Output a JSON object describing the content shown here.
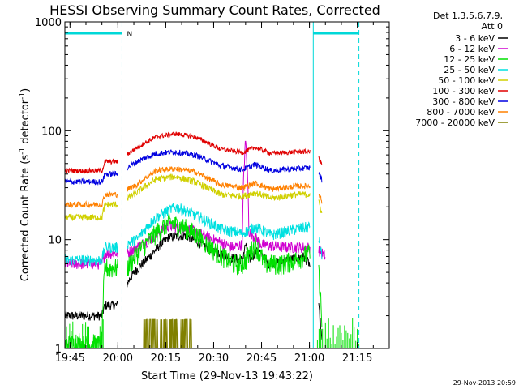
{
  "chart_data": {
    "type": "line",
    "title": "HESSI Observing Summary Count Rates, Corrected",
    "xlabel": "Start Time (29-Nov-13 19:43:22)",
    "ylabel": "Corrected Count Rate (s⁻¹ detector⁻¹)",
    "ylabel_main": "Corrected Count Rate (s",
    "ylabel_sup1": "-1",
    "ylabel_mid": " detector",
    "ylabel_sup2": "-1",
    "ylabel_end": ")",
    "y_scale": "log",
    "ylim": [
      1,
      1000
    ],
    "x_ticks": [
      "19:45",
      "20:00",
      "20:15",
      "20:30",
      "20:45",
      "21:00",
      "21:15"
    ],
    "x_tick_minutes": [
      1185,
      1200,
      1215,
      1230,
      1245,
      1260,
      1275
    ],
    "xlim_minutes": [
      1183.4,
      1285
    ],
    "y_ticks": [
      "1",
      "10",
      "100",
      "1000"
    ],
    "y_tick_values": [
      1,
      10,
      100,
      1000
    ],
    "legend_header": [
      "Det 1,3,5,6,7,9,",
      "Att 0"
    ],
    "legend_placement": "right",
    "annotation_flag": "N",
    "timestamp": "29-Nov-2013 20:59",
    "markers_minutes": [
      1201.3,
      1261.2,
      1275.5
    ],
    "flag_intervals_minutes": [
      [
        1183.4,
        1201.3
      ],
      [
        1261.2,
        1275.5
      ]
    ],
    "sunlight_gaps_minutes": [
      [
        1200.0,
        1202.8
      ],
      [
        1260.2,
        1262.8
      ]
    ],
    "series": [
      {
        "name": "3 - 6 keV",
        "color": "#000000",
        "values": [
          {
            "t": 1183.4,
            "v": 2
          },
          {
            "t": 1195,
            "v": 2
          },
          {
            "t": 1196,
            "v": 2.5
          },
          {
            "t": 1200,
            "v": 2.5
          },
          {
            "t": 1204,
            "v": 4.5
          },
          {
            "t": 1210,
            "v": 7
          },
          {
            "t": 1216,
            "v": 10.5
          },
          {
            "t": 1221,
            "v": 11
          },
          {
            "t": 1228,
            "v": 8.5
          },
          {
            "t": 1234,
            "v": 7
          },
          {
            "t": 1239,
            "v": 6.5
          },
          {
            "t": 1240,
            "v": 9
          },
          {
            "t": 1241,
            "v": 6.5
          },
          {
            "t": 1244,
            "v": 8
          },
          {
            "t": 1247,
            "v": 6
          },
          {
            "t": 1253,
            "v": 6.5
          },
          {
            "t": 1258,
            "v": 7
          },
          {
            "t": 1260,
            "v": 6
          },
          {
            "t": 1261,
            "v": 3.5
          },
          {
            "t": 1262,
            "v": 3.5
          },
          {
            "t": 1264,
            "v": 1
          }
        ]
      },
      {
        "name": "6 - 12 keV",
        "color": "#d000d0",
        "values": [
          {
            "t": 1183.4,
            "v": 6
          },
          {
            "t": 1195,
            "v": 6
          },
          {
            "t": 1196,
            "v": 7.5
          },
          {
            "t": 1200,
            "v": 7.5
          },
          {
            "t": 1203,
            "v": 7.5
          },
          {
            "t": 1210,
            "v": 10
          },
          {
            "t": 1216,
            "v": 13.5
          },
          {
            "t": 1222,
            "v": 12.5
          },
          {
            "t": 1230,
            "v": 10
          },
          {
            "t": 1236,
            "v": 8.5
          },
          {
            "t": 1239,
            "v": 9
          },
          {
            "t": 1240,
            "v": 80
          },
          {
            "t": 1241,
            "v": 12
          },
          {
            "t": 1243,
            "v": 10.5
          },
          {
            "t": 1245,
            "v": 9
          },
          {
            "t": 1252,
            "v": 8.5
          },
          {
            "t": 1258,
            "v": 8.5
          },
          {
            "t": 1262,
            "v": 8.5
          },
          {
            "t": 1265,
            "v": 7
          }
        ]
      },
      {
        "name": "12 - 25 keV",
        "color": "#00e000",
        "values": [
          {
            "t": 1183.4,
            "v": 1.1
          },
          {
            "t": 1195,
            "v": 1.1
          },
          {
            "t": 1196,
            "v": 5.5
          },
          {
            "t": 1200,
            "v": 5.5
          },
          {
            "t": 1203,
            "v": 5.5
          },
          {
            "t": 1210,
            "v": 10
          },
          {
            "t": 1216,
            "v": 14.5
          },
          {
            "t": 1222,
            "v": 12.5
          },
          {
            "t": 1230,
            "v": 8
          },
          {
            "t": 1236,
            "v": 6
          },
          {
            "t": 1239,
            "v": 6
          },
          {
            "t": 1240,
            "v": 6.5
          },
          {
            "t": 1243,
            "v": 9
          },
          {
            "t": 1246,
            "v": 6
          },
          {
            "t": 1252,
            "v": 6
          },
          {
            "t": 1258,
            "v": 7
          },
          {
            "t": 1262,
            "v": 8
          },
          {
            "t": 1264,
            "v": 1.2
          }
        ]
      },
      {
        "name": "25 - 50 keV",
        "color": "#00e0e0",
        "values": [
          {
            "t": 1183.4,
            "v": 6.5
          },
          {
            "t": 1195,
            "v": 6.5
          },
          {
            "t": 1196,
            "v": 8.5
          },
          {
            "t": 1200,
            "v": 8.5
          },
          {
            "t": 1206,
            "v": 10
          },
          {
            "t": 1212,
            "v": 16
          },
          {
            "t": 1218,
            "v": 20
          },
          {
            "t": 1224,
            "v": 17
          },
          {
            "t": 1232,
            "v": 12.5
          },
          {
            "t": 1239,
            "v": 11.5
          },
          {
            "t": 1243,
            "v": 13
          },
          {
            "t": 1248,
            "v": 11
          },
          {
            "t": 1256,
            "v": 12.5
          },
          {
            "t": 1262,
            "v": 13.5
          },
          {
            "t": 1264,
            "v": 6.5
          }
        ]
      },
      {
        "name": "50 - 100 keV",
        "color": "#d0d000",
        "values": [
          {
            "t": 1183.4,
            "v": 16
          },
          {
            "t": 1195,
            "v": 16
          },
          {
            "t": 1196,
            "v": 21
          },
          {
            "t": 1200,
            "v": 21
          },
          {
            "t": 1206,
            "v": 27
          },
          {
            "t": 1212,
            "v": 36
          },
          {
            "t": 1218,
            "v": 38
          },
          {
            "t": 1224,
            "v": 34
          },
          {
            "t": 1232,
            "v": 26
          },
          {
            "t": 1239,
            "v": 25
          },
          {
            "t": 1243,
            "v": 27
          },
          {
            "t": 1248,
            "v": 24
          },
          {
            "t": 1256,
            "v": 26
          },
          {
            "t": 1262,
            "v": 26
          },
          {
            "t": 1264,
            "v": 17
          }
        ]
      },
      {
        "name": "100 - 300 keV",
        "color": "#e00000",
        "values": [
          {
            "t": 1183.4,
            "v": 43
          },
          {
            "t": 1195,
            "v": 43
          },
          {
            "t": 1196,
            "v": 52
          },
          {
            "t": 1200,
            "v": 52
          },
          {
            "t": 1206,
            "v": 70
          },
          {
            "t": 1212,
            "v": 88
          },
          {
            "t": 1218,
            "v": 94
          },
          {
            "t": 1224,
            "v": 88
          },
          {
            "t": 1232,
            "v": 68
          },
          {
            "t": 1239,
            "v": 63
          },
          {
            "t": 1243,
            "v": 70
          },
          {
            "t": 1248,
            "v": 62
          },
          {
            "t": 1256,
            "v": 64
          },
          {
            "t": 1262,
            "v": 64
          },
          {
            "t": 1264,
            "v": 48
          }
        ]
      },
      {
        "name": "300 - 800 keV",
        "color": "#0000e0",
        "values": [
          {
            "t": 1183.4,
            "v": 34
          },
          {
            "t": 1195,
            "v": 34
          },
          {
            "t": 1196,
            "v": 40
          },
          {
            "t": 1200,
            "v": 40
          },
          {
            "t": 1206,
            "v": 52
          },
          {
            "t": 1212,
            "v": 62
          },
          {
            "t": 1218,
            "v": 64
          },
          {
            "t": 1224,
            "v": 60
          },
          {
            "t": 1232,
            "v": 48
          },
          {
            "t": 1239,
            "v": 44
          },
          {
            "t": 1243,
            "v": 49
          },
          {
            "t": 1248,
            "v": 43
          },
          {
            "t": 1256,
            "v": 45
          },
          {
            "t": 1262,
            "v": 46
          },
          {
            "t": 1264,
            "v": 35
          }
        ]
      },
      {
        "name": "800 - 7000 keV",
        "color": "#ff8000",
        "values": [
          {
            "t": 1183.4,
            "v": 21
          },
          {
            "t": 1195,
            "v": 21
          },
          {
            "t": 1196,
            "v": 26
          },
          {
            "t": 1200,
            "v": 26
          },
          {
            "t": 1206,
            "v": 32
          },
          {
            "t": 1212,
            "v": 43
          },
          {
            "t": 1218,
            "v": 45
          },
          {
            "t": 1224,
            "v": 42
          },
          {
            "t": 1232,
            "v": 32
          },
          {
            "t": 1239,
            "v": 30
          },
          {
            "t": 1243,
            "v": 33
          },
          {
            "t": 1248,
            "v": 29
          },
          {
            "t": 1256,
            "v": 31
          },
          {
            "t": 1262,
            "v": 31
          },
          {
            "t": 1264,
            "v": 22
          }
        ]
      },
      {
        "name": "7000 - 20000 keV",
        "color": "#808000",
        "values": [
          {
            "t": 1207,
            "v": 1
          },
          {
            "t": 1208,
            "v": 1.85
          },
          {
            "t": 1223,
            "v": 1.85
          },
          {
            "t": 1224,
            "v": 1
          }
        ]
      }
    ]
  }
}
